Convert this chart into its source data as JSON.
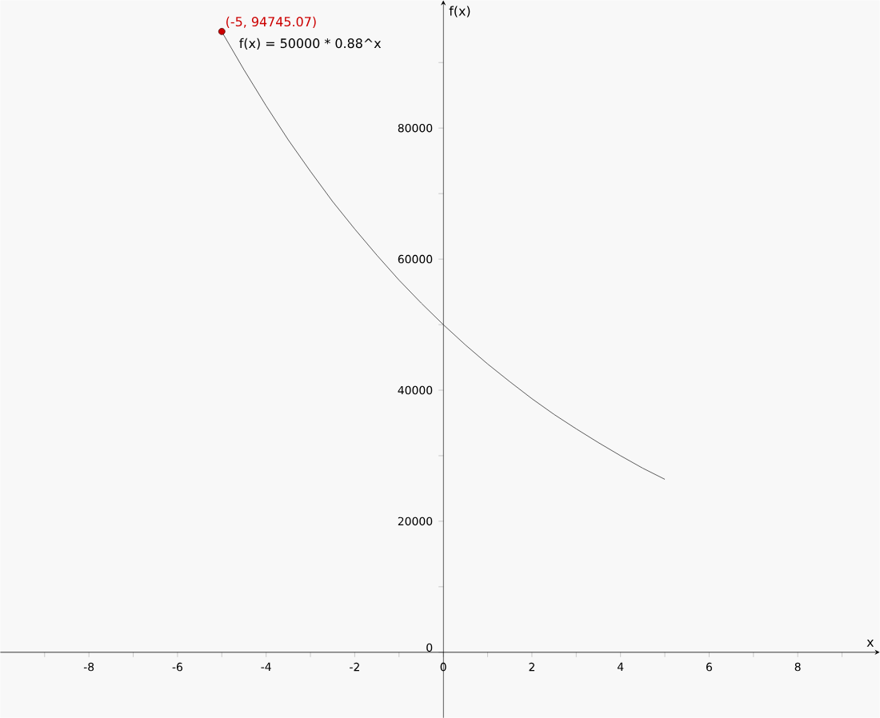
{
  "chart_data": {
    "type": "line",
    "xlabel": "x",
    "ylabel": "f(x)",
    "annotations": [
      "f(x) = 50000 * 0.88^x"
    ],
    "xlim": [
      -10,
      9.85
    ],
    "ylim": [
      -10000,
      99500
    ],
    "xticks": [
      {
        "value": -9,
        "label": null
      },
      -8,
      {
        "value": -7,
        "label": null
      },
      -6,
      {
        "value": -5,
        "label": null
      },
      -4,
      {
        "value": -3,
        "label": null
      },
      -2,
      {
        "value": -1,
        "label": null
      },
      0,
      {
        "value": 1,
        "label": null
      },
      2,
      {
        "value": 3,
        "label": null
      },
      4,
      {
        "value": 5,
        "label": null
      },
      6,
      {
        "value": 7,
        "label": null
      },
      8,
      {
        "value": 9,
        "label": null
      }
    ],
    "yticks": [
      0,
      {
        "value": 10000,
        "label": null
      },
      20000,
      {
        "value": 30000,
        "label": null
      },
      40000,
      {
        "value": 50000,
        "label": null
      },
      60000,
      {
        "value": 70000,
        "label": null
      },
      80000,
      {
        "value": 90000,
        "label": null
      }
    ],
    "series": [
      {
        "color": "#333333",
        "marker": "none",
        "x": [
          -5,
          -4.5,
          -4,
          -3.5,
          -3,
          -2.5,
          -2,
          -1.5,
          -1,
          -0.5,
          0,
          0.5,
          1,
          1.5,
          2,
          2.5,
          3,
          3.5,
          4,
          4.5,
          5
        ],
        "values": [
          94700,
          88900,
          83400,
          78200,
          73400,
          68800,
          64600,
          60600,
          56800,
          53300,
          50000,
          46900,
          44000,
          41300,
          38700,
          36300,
          34100,
          32000,
          30000,
          28100,
          26400
        ]
      },
      {
        "type": "scatter",
        "color": "#cc0000",
        "marker": "circle",
        "x": [
          -5
        ],
        "values": [
          94745.07
        ],
        "value_labels": [
          "(-5, 94745.07)"
        ]
      }
    ]
  }
}
